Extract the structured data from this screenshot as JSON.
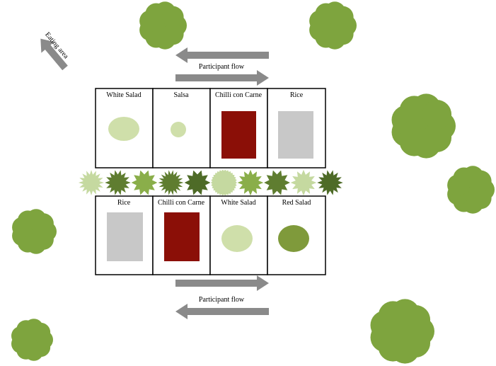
{
  "labels": {
    "eating_area": "Eating area",
    "flow_top": "Participant flow",
    "flow_bottom": "Participant flow"
  },
  "tables": {
    "top": [
      "White Salad",
      "Salsa",
      "Chilli con Carne",
      "Rice"
    ],
    "bottom": [
      "Rice",
      "Chilli con Carne",
      "White Salad",
      "Red Salad"
    ]
  }
}
